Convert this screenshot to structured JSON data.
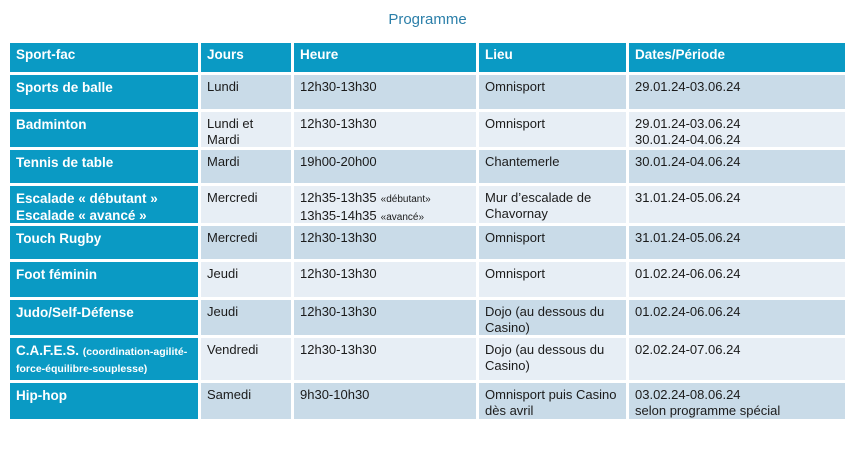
{
  "title": "Programme",
  "colors": {
    "header_bg": "#0a9ac4",
    "row_dark": "#c9dbe8",
    "row_light": "#e7eef5",
    "title_text": "#2b7fa9",
    "header_text": "#ffffff",
    "cell_text": "#1b1b1b"
  },
  "table": {
    "headers": [
      "Sport-fac",
      "Jours",
      "Heure",
      "Lieu",
      "Dates/Période"
    ],
    "rows": [
      {
        "sport": "Sports de balle",
        "jours": "Lundi",
        "heure": "12h30-13h30",
        "lieu": "Omnisport",
        "dates": [
          "29.01.24-03.06.24"
        ]
      },
      {
        "sport": "Badminton",
        "jours": "Lundi et Mardi",
        "heure": "12h30-13h30",
        "lieu": "Omnisport",
        "dates": [
          "29.01.24-03.06.24",
          "30.01.24-04.06.24"
        ]
      },
      {
        "sport": "Tennis de table",
        "jours": "Mardi",
        "heure": "19h00-20h00",
        "lieu": "Chantemerle",
        "dates": [
          "30.01.24-04.06.24"
        ]
      },
      {
        "sport_lines": [
          "Escalade « débutant »",
          "Escalade « avancé »"
        ],
        "jours": "Mercredi",
        "heure_parts": [
          {
            "time": "12h35-13h35",
            "label": "«débutant»"
          },
          {
            "time": "13h35-14h35",
            "label": "«avancé»"
          }
        ],
        "lieu": "Mur d’escalade de Chavornay",
        "dates": [
          "31.01.24-05.06.24"
        ]
      },
      {
        "sport": "Touch Rugby",
        "jours": "Mercredi",
        "heure": "12h30-13h30",
        "lieu": "Omnisport",
        "dates": [
          "31.01.24-05.06.24"
        ]
      },
      {
        "sport": "Foot féminin",
        "jours": "Jeudi",
        "heure": "12h30-13h30",
        "lieu": "Omnisport",
        "dates": [
          "01.02.24-06.06.24"
        ]
      },
      {
        "sport": "Judo/Self-Défense",
        "jours": "Jeudi",
        "heure": "12h30-13h30",
        "lieu": "Dojo (au dessous du Casino)",
        "dates": [
          "01.02.24-06.06.24"
        ]
      },
      {
        "sport_main": "C.A.F.E.S.",
        "sport_small": "(coordination-agilité-force-équilibre-souplesse)",
        "jours": "Vendredi",
        "heure": "12h30-13h30",
        "lieu": "Dojo (au dessous du Casino)",
        "dates": [
          "02.02.24-07.06.24"
        ]
      },
      {
        "sport": "Hip-hop",
        "jours": "Samedi",
        "heure": "9h30-10h30",
        "lieu": "Omnisport puis Casino dès avril",
        "dates": [
          "03.02.24-08.06.24",
          "selon programme spécial"
        ]
      }
    ]
  }
}
